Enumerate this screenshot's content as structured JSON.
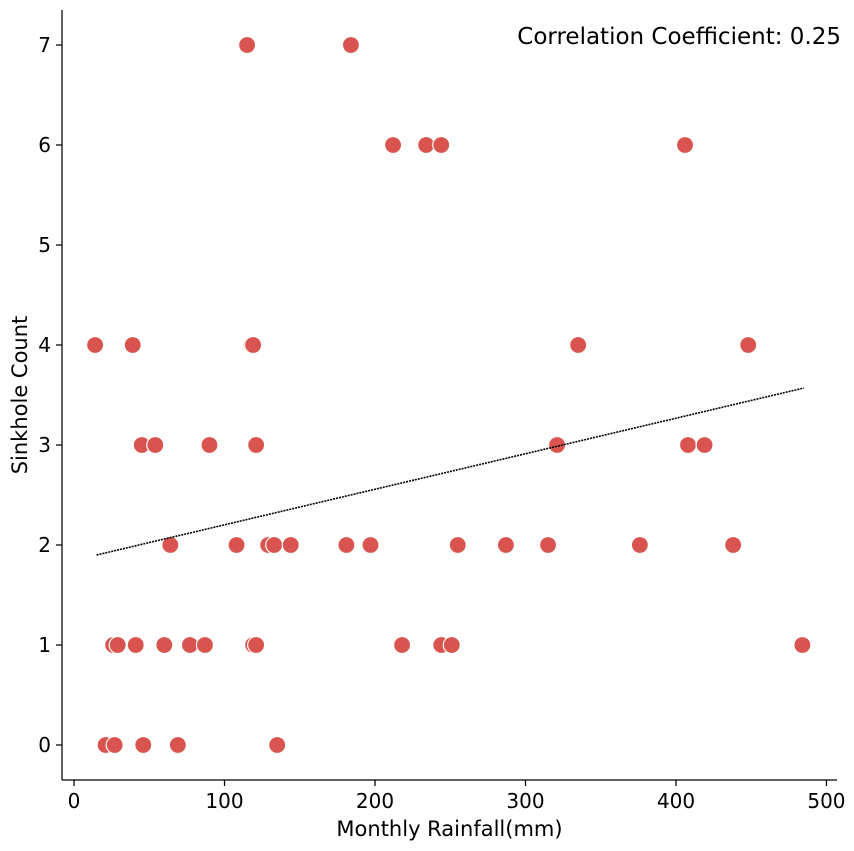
{
  "chart_data": {
    "type": "scatter",
    "title": "",
    "xlabel": "Monthly Rainfall(mm)",
    "ylabel": "Sinkhole Count",
    "xlim": [
      -8,
      507
    ],
    "ylim": [
      -0.35,
      7.35
    ],
    "xticks": [
      0,
      100,
      200,
      300,
      400,
      500
    ],
    "yticks": [
      0,
      1,
      2,
      3,
      4,
      5,
      6,
      7
    ],
    "grid": false,
    "annotation": "Correlation Coefficient: 0.25",
    "point_color": "#d9534f",
    "trendline": {
      "x": [
        15,
        485
      ],
      "y": [
        1.9,
        3.57
      ],
      "color": "#000000"
    },
    "points": [
      {
        "x": 115,
        "y": 7
      },
      {
        "x": 184,
        "y": 7
      },
      {
        "x": 212,
        "y": 6
      },
      {
        "x": 234,
        "y": 6
      },
      {
        "x": 244,
        "y": 6
      },
      {
        "x": 406,
        "y": 6
      },
      {
        "x": 14,
        "y": 4
      },
      {
        "x": 39,
        "y": 4
      },
      {
        "x": 118,
        "y": 4
      },
      {
        "x": 119,
        "y": 4
      },
      {
        "x": 335,
        "y": 4
      },
      {
        "x": 448,
        "y": 4
      },
      {
        "x": 45,
        "y": 3
      },
      {
        "x": 54,
        "y": 3
      },
      {
        "x": 90,
        "y": 3
      },
      {
        "x": 121,
        "y": 3
      },
      {
        "x": 321,
        "y": 3
      },
      {
        "x": 408,
        "y": 3
      },
      {
        "x": 419,
        "y": 3
      },
      {
        "x": 64,
        "y": 2
      },
      {
        "x": 108,
        "y": 2
      },
      {
        "x": 129,
        "y": 2
      },
      {
        "x": 133,
        "y": 2
      },
      {
        "x": 144,
        "y": 2
      },
      {
        "x": 181,
        "y": 2
      },
      {
        "x": 197,
        "y": 2
      },
      {
        "x": 255,
        "y": 2
      },
      {
        "x": 287,
        "y": 2
      },
      {
        "x": 315,
        "y": 2
      },
      {
        "x": 376,
        "y": 2
      },
      {
        "x": 438,
        "y": 2
      },
      {
        "x": 26,
        "y": 1
      },
      {
        "x": 29,
        "y": 1
      },
      {
        "x": 41,
        "y": 1
      },
      {
        "x": 60,
        "y": 1
      },
      {
        "x": 77,
        "y": 1
      },
      {
        "x": 87,
        "y": 1
      },
      {
        "x": 119,
        "y": 1
      },
      {
        "x": 121,
        "y": 1
      },
      {
        "x": 218,
        "y": 1
      },
      {
        "x": 244,
        "y": 1
      },
      {
        "x": 251,
        "y": 1
      },
      {
        "x": 484,
        "y": 1
      },
      {
        "x": 21,
        "y": 0
      },
      {
        "x": 27,
        "y": 0
      },
      {
        "x": 46,
        "y": 0
      },
      {
        "x": 69,
        "y": 0
      },
      {
        "x": 135,
        "y": 0
      }
    ]
  }
}
